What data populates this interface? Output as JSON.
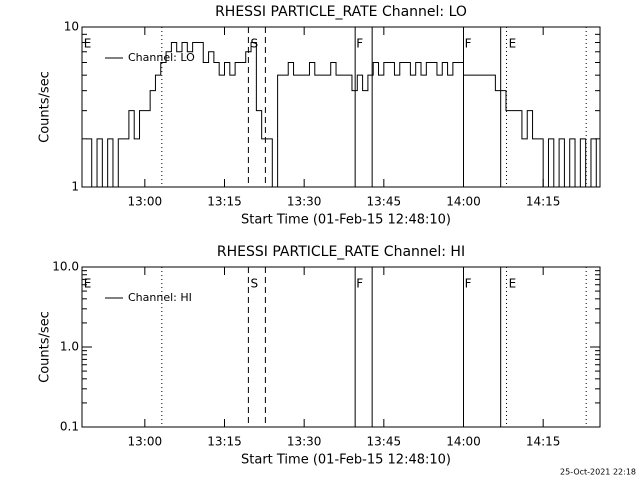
{
  "chart_data": [
    {
      "type": "line",
      "title": "RHESSI PARTICLE_RATE Channel: LO",
      "xlabel": "Start Time (01-Feb-15 12:48:10)",
      "ylabel": "Counts/sec",
      "log_y": true,
      "xlim": [
        768.17,
        865.7
      ],
      "ylim": [
        1,
        10
      ],
      "xticks": [
        {
          "value": 780,
          "label": "13:00"
        },
        {
          "value": 795,
          "label": "13:15"
        },
        {
          "value": 810,
          "label": "13:30"
        },
        {
          "value": 825,
          "label": "13:45"
        },
        {
          "value": 840,
          "label": "14:00"
        },
        {
          "value": 855,
          "label": "14:15"
        }
      ],
      "yticks": [
        1,
        10
      ],
      "yminorticks": [
        2,
        3,
        4,
        5,
        6,
        7,
        8,
        9
      ],
      "markers": [
        {
          "x": 783.2,
          "style": "dotted"
        },
        {
          "x": 799.5,
          "style": "dashed"
        },
        {
          "x": 802.7,
          "style": "dashed"
        },
        {
          "x": 819.6,
          "style": "solid"
        },
        {
          "x": 822.8,
          "style": "solid"
        },
        {
          "x": 840.0,
          "style": "solid"
        },
        {
          "x": 847.0,
          "style": "solid"
        },
        {
          "x": 848.1,
          "style": "dotted"
        },
        {
          "x": 863.1,
          "style": "dotted"
        }
      ],
      "annotations": [
        {
          "x": 768.5,
          "text": "E"
        },
        {
          "x": 799.9,
          "text": "S"
        },
        {
          "x": 819.8,
          "text": "F"
        },
        {
          "x": 840.2,
          "text": "F"
        },
        {
          "x": 848.5,
          "text": "E"
        }
      ],
      "x": [
        769,
        770,
        771,
        772,
        773,
        774,
        775,
        776,
        777,
        778,
        779,
        780,
        781,
        782,
        783,
        784,
        785,
        786,
        787,
        788,
        789,
        790,
        791,
        792,
        793,
        794,
        795,
        796,
        797,
        798,
        799,
        800,
        801,
        802,
        803,
        804,
        805,
        806,
        807,
        808,
        809,
        810,
        811,
        812,
        813,
        814,
        815,
        816,
        817,
        818,
        819,
        820,
        821,
        822,
        823,
        824,
        825,
        826,
        827,
        828,
        829,
        830,
        831,
        832,
        833,
        834,
        835,
        836,
        837,
        838,
        839,
        840,
        841,
        842,
        843,
        844,
        845,
        846,
        847,
        848,
        849,
        850,
        851,
        852,
        853,
        854,
        855,
        856,
        857,
        858,
        859,
        860,
        861,
        862,
        863,
        864,
        865
      ],
      "series": [
        {
          "name": "Channel: LO",
          "color": "#000000",
          "values": [
            2,
            1,
            2,
            1,
            2,
            1,
            2,
            2,
            3,
            2,
            3,
            3,
            4,
            5,
            6,
            7,
            8,
            7,
            8,
            7,
            8,
            8,
            6,
            7,
            6,
            5,
            6,
            5,
            6,
            6,
            7,
            8,
            3,
            2,
            2,
            1,
            5,
            5,
            6,
            5,
            5,
            5,
            6,
            5,
            5,
            5,
            6,
            5,
            5,
            5,
            4,
            5,
            4,
            5,
            6,
            5,
            6,
            6,
            5,
            6,
            6,
            5,
            6,
            5,
            6,
            6,
            5,
            6,
            5,
            6,
            6,
            5,
            5,
            5,
            5,
            5,
            5,
            4,
            4,
            3,
            3,
            3,
            2,
            3,
            2,
            2,
            1,
            2,
            1,
            2,
            1,
            2,
            1,
            2,
            1,
            2,
            1
          ]
        }
      ]
    },
    {
      "type": "line",
      "title": "RHESSI PARTICLE_RATE Channel: HI",
      "xlabel": "Start Time (01-Feb-15 12:48:10)",
      "ylabel": "Counts/sec",
      "log_y": true,
      "xlim": [
        768.17,
        865.7
      ],
      "ylim": [
        0.1,
        10
      ],
      "xticks": [
        {
          "value": 780,
          "label": "13:00"
        },
        {
          "value": 795,
          "label": "13:15"
        },
        {
          "value": 810,
          "label": "13:30"
        },
        {
          "value": 825,
          "label": "13:45"
        },
        {
          "value": 840,
          "label": "14:00"
        },
        {
          "value": 855,
          "label": "14:15"
        }
      ],
      "yticks": [
        {
          "value": 10,
          "label": "10.0"
        },
        {
          "value": 1,
          "label": "1.0"
        },
        0.1
      ],
      "yminorticks": [
        0.2,
        0.3,
        0.4,
        0.5,
        0.6,
        0.7,
        0.8,
        0.9,
        2,
        3,
        4,
        5,
        6,
        7,
        8,
        9
      ],
      "markers": [
        {
          "x": 783.2,
          "style": "dotted"
        },
        {
          "x": 799.5,
          "style": "dashed"
        },
        {
          "x": 802.7,
          "style": "dashed"
        },
        {
          "x": 819.6,
          "style": "solid"
        },
        {
          "x": 822.8,
          "style": "solid"
        },
        {
          "x": 840.0,
          "style": "solid"
        },
        {
          "x": 847.0,
          "style": "solid"
        },
        {
          "x": 848.1,
          "style": "dotted"
        },
        {
          "x": 863.1,
          "style": "dotted"
        }
      ],
      "annotations": [
        {
          "x": 768.5,
          "text": "E"
        },
        {
          "x": 799.9,
          "text": "S"
        },
        {
          "x": 819.8,
          "text": "F"
        },
        {
          "x": 840.2,
          "text": "F"
        },
        {
          "x": 848.5,
          "text": "E"
        }
      ],
      "series": [
        {
          "name": "Channel: HI",
          "color": "#000000"
        }
      ]
    }
  ],
  "footer": "25-Oct-2021 22:18"
}
